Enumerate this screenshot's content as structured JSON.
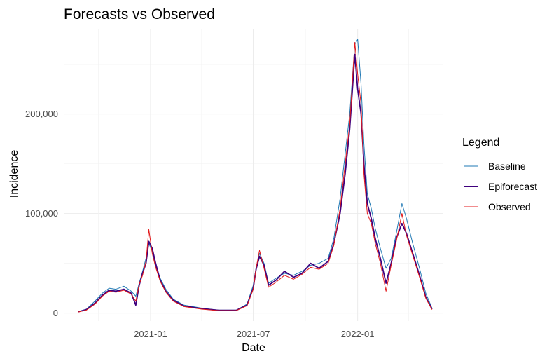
{
  "chart_data": {
    "type": "line",
    "title": "Forecasts vs Observed",
    "xlabel": "Date",
    "ylabel": "Incidence",
    "xlim": [
      "2020-08-01",
      "2022-06-01"
    ],
    "ylim": [
      -8000,
      285000
    ],
    "x_ticks": [
      {
        "value": "2021-01-01",
        "label": "2021-01"
      },
      {
        "value": "2021-07-01",
        "label": "2021-07"
      },
      {
        "value": "2022-01-01",
        "label": "2022-01"
      }
    ],
    "y_ticks": [
      {
        "value": 0,
        "label": "0"
      },
      {
        "value": 100000,
        "label": "100,000"
      },
      {
        "value": 200000,
        "label": "200,000"
      }
    ],
    "grid": true,
    "legend": {
      "title": "Legend",
      "position": "right"
    },
    "series": [
      {
        "name": "Baseline",
        "color": "#1f78b4",
        "points": [
          [
            "2020-08-26",
            1500
          ],
          [
            "2020-09-10",
            4000
          ],
          [
            "2020-09-25",
            12000
          ],
          [
            "2020-10-08",
            20000
          ],
          [
            "2020-10-20",
            25000
          ],
          [
            "2020-11-01",
            24000
          ],
          [
            "2020-11-15",
            27000
          ],
          [
            "2020-11-28",
            22000
          ],
          [
            "2020-12-06",
            17000
          ],
          [
            "2020-12-12",
            30000
          ],
          [
            "2020-12-18",
            42000
          ],
          [
            "2020-12-24",
            55000
          ],
          [
            "2020-12-29",
            70000
          ],
          [
            "2021-01-04",
            62000
          ],
          [
            "2021-01-10",
            48000
          ],
          [
            "2021-01-18",
            35000
          ],
          [
            "2021-01-28",
            24000
          ],
          [
            "2021-02-10",
            14000
          ],
          [
            "2021-03-01",
            8000
          ],
          [
            "2021-04-01",
            5000
          ],
          [
            "2021-05-01",
            3000
          ],
          [
            "2021-06-01",
            3000
          ],
          [
            "2021-06-20",
            9000
          ],
          [
            "2021-07-01",
            28000
          ],
          [
            "2021-07-06",
            46000
          ],
          [
            "2021-07-12",
            60000
          ],
          [
            "2021-07-20",
            50000
          ],
          [
            "2021-07-28",
            30000
          ],
          [
            "2021-08-10",
            35000
          ],
          [
            "2021-08-25",
            40000
          ],
          [
            "2021-09-10",
            38000
          ],
          [
            "2021-09-25",
            42000
          ],
          [
            "2021-10-10",
            48000
          ],
          [
            "2021-10-25",
            50000
          ],
          [
            "2021-11-10",
            55000
          ],
          [
            "2021-11-20",
            75000
          ],
          [
            "2021-12-01",
            115000
          ],
          [
            "2021-12-10",
            160000
          ],
          [
            "2021-12-18",
            200000
          ],
          [
            "2021-12-27",
            270000
          ],
          [
            "2022-01-01",
            275000
          ],
          [
            "2022-01-07",
            230000
          ],
          [
            "2022-01-12",
            170000
          ],
          [
            "2022-01-18",
            120000
          ],
          [
            "2022-01-25",
            105000
          ],
          [
            "2022-02-01",
            85000
          ],
          [
            "2022-02-10",
            65000
          ],
          [
            "2022-02-20",
            45000
          ],
          [
            "2022-03-01",
            55000
          ],
          [
            "2022-03-10",
            80000
          ],
          [
            "2022-03-20",
            110000
          ],
          [
            "2022-03-28",
            95000
          ],
          [
            "2022-04-08",
            70000
          ],
          [
            "2022-04-20",
            45000
          ],
          [
            "2022-05-01",
            20000
          ],
          [
            "2022-05-12",
            5000
          ]
        ]
      },
      {
        "name": "Epiforecast",
        "color": "#3f007d",
        "points": [
          [
            "2020-08-26",
            1200
          ],
          [
            "2020-09-10",
            3500
          ],
          [
            "2020-09-25",
            10000
          ],
          [
            "2020-10-08",
            18000
          ],
          [
            "2020-10-20",
            23000
          ],
          [
            "2020-11-01",
            22000
          ],
          [
            "2020-11-15",
            24000
          ],
          [
            "2020-11-28",
            20000
          ],
          [
            "2020-12-06",
            8000
          ],
          [
            "2020-12-12",
            28000
          ],
          [
            "2020-12-18",
            40000
          ],
          [
            "2020-12-24",
            50000
          ],
          [
            "2020-12-29",
            72000
          ],
          [
            "2021-01-04",
            65000
          ],
          [
            "2021-01-10",
            50000
          ],
          [
            "2021-01-18",
            33000
          ],
          [
            "2021-01-28",
            22000
          ],
          [
            "2021-02-10",
            13000
          ],
          [
            "2021-03-01",
            7000
          ],
          [
            "2021-04-01",
            4500
          ],
          [
            "2021-05-01",
            2800
          ],
          [
            "2021-06-01",
            2800
          ],
          [
            "2021-06-20",
            8000
          ],
          [
            "2021-07-01",
            25000
          ],
          [
            "2021-07-06",
            44000
          ],
          [
            "2021-07-12",
            57000
          ],
          [
            "2021-07-20",
            48000
          ],
          [
            "2021-07-28",
            28000
          ],
          [
            "2021-08-10",
            33000
          ],
          [
            "2021-08-25",
            42000
          ],
          [
            "2021-09-10",
            36000
          ],
          [
            "2021-09-25",
            40000
          ],
          [
            "2021-10-10",
            50000
          ],
          [
            "2021-10-25",
            45000
          ],
          [
            "2021-11-10",
            52000
          ],
          [
            "2021-11-20",
            70000
          ],
          [
            "2021-12-01",
            100000
          ],
          [
            "2021-12-10",
            140000
          ],
          [
            "2021-12-18",
            185000
          ],
          [
            "2021-12-27",
            260000
          ],
          [
            "2022-01-01",
            225000
          ],
          [
            "2022-01-07",
            200000
          ],
          [
            "2022-01-12",
            150000
          ],
          [
            "2022-01-18",
            110000
          ],
          [
            "2022-01-25",
            95000
          ],
          [
            "2022-02-01",
            75000
          ],
          [
            "2022-02-10",
            55000
          ],
          [
            "2022-02-20",
            30000
          ],
          [
            "2022-03-01",
            50000
          ],
          [
            "2022-03-10",
            75000
          ],
          [
            "2022-03-20",
            90000
          ],
          [
            "2022-03-28",
            80000
          ],
          [
            "2022-04-08",
            60000
          ],
          [
            "2022-04-20",
            38000
          ],
          [
            "2022-05-01",
            16000
          ],
          [
            "2022-05-12",
            4000
          ]
        ]
      },
      {
        "name": "Observed",
        "color": "#e31a1c",
        "points": [
          [
            "2020-08-26",
            1000
          ],
          [
            "2020-09-10",
            3000
          ],
          [
            "2020-09-25",
            9000
          ],
          [
            "2020-10-08",
            17000
          ],
          [
            "2020-10-20",
            22000
          ],
          [
            "2020-11-01",
            21000
          ],
          [
            "2020-11-15",
            23000
          ],
          [
            "2020-11-28",
            19000
          ],
          [
            "2020-12-06",
            12000
          ],
          [
            "2020-12-12",
            29000
          ],
          [
            "2020-12-18",
            38000
          ],
          [
            "2020-12-24",
            52000
          ],
          [
            "2020-12-29",
            84000
          ],
          [
            "2021-01-04",
            60000
          ],
          [
            "2021-01-10",
            46000
          ],
          [
            "2021-01-18",
            32000
          ],
          [
            "2021-01-28",
            21000
          ],
          [
            "2021-02-10",
            12000
          ],
          [
            "2021-03-01",
            6500
          ],
          [
            "2021-04-01",
            4000
          ],
          [
            "2021-05-01",
            2500
          ],
          [
            "2021-06-01",
            2500
          ],
          [
            "2021-06-20",
            7500
          ],
          [
            "2021-07-01",
            24000
          ],
          [
            "2021-07-06",
            45000
          ],
          [
            "2021-07-12",
            63000
          ],
          [
            "2021-07-20",
            45000
          ],
          [
            "2021-07-28",
            26000
          ],
          [
            "2021-08-10",
            31000
          ],
          [
            "2021-08-25",
            38000
          ],
          [
            "2021-09-10",
            34000
          ],
          [
            "2021-09-25",
            39000
          ],
          [
            "2021-10-10",
            46000
          ],
          [
            "2021-10-25",
            44000
          ],
          [
            "2021-11-10",
            50000
          ],
          [
            "2021-11-20",
            68000
          ],
          [
            "2021-12-01",
            105000
          ],
          [
            "2021-12-10",
            150000
          ],
          [
            "2021-12-18",
            190000
          ],
          [
            "2021-12-27",
            272000
          ],
          [
            "2022-01-01",
            240000
          ],
          [
            "2022-01-07",
            210000
          ],
          [
            "2022-01-12",
            140000
          ],
          [
            "2022-01-18",
            100000
          ],
          [
            "2022-01-25",
            90000
          ],
          [
            "2022-02-01",
            70000
          ],
          [
            "2022-02-10",
            50000
          ],
          [
            "2022-02-20",
            22000
          ],
          [
            "2022-03-01",
            48000
          ],
          [
            "2022-03-10",
            72000
          ],
          [
            "2022-03-20",
            100000
          ],
          [
            "2022-03-28",
            78000
          ],
          [
            "2022-04-08",
            58000
          ],
          [
            "2022-04-20",
            36000
          ],
          [
            "2022-05-01",
            15000
          ],
          [
            "2022-05-12",
            3500
          ]
        ]
      }
    ]
  }
}
